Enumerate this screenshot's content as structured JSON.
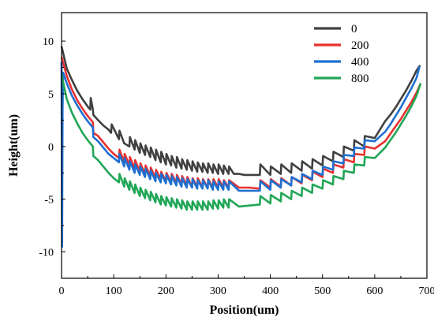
{
  "chart_data": {
    "type": "line",
    "title": "",
    "xlabel": "Position(um)",
    "ylabel": "Height(um)",
    "xlim": [
      0,
      700
    ],
    "ylim": [
      -12.5,
      12.7
    ],
    "x_ticks": [
      0,
      100,
      200,
      300,
      400,
      500,
      600,
      700
    ],
    "y_ticks": [
      -10,
      -5,
      0,
      5,
      10
    ],
    "grid": false,
    "legend_position": "top-right",
    "series": [
      {
        "name": "0",
        "color": "#404040",
        "x": [
          0,
          10,
          20,
          30,
          40,
          50,
          55,
          56,
          60,
          61,
          70,
          80,
          90,
          95,
          96,
          110,
          111,
          120,
          130,
          131,
          140,
          141,
          150,
          151,
          160,
          161,
          170,
          171,
          180,
          181,
          190,
          191,
          200,
          201,
          210,
          211,
          220,
          221,
          230,
          231,
          240,
          241,
          250,
          251,
          260,
          261,
          270,
          271,
          280,
          281,
          290,
          291,
          300,
          301,
          310,
          311,
          320,
          321,
          330,
          340,
          350,
          360,
          370,
          380,
          381,
          400,
          401,
          420,
          421,
          440,
          441,
          460,
          461,
          480,
          481,
          500,
          501,
          520,
          521,
          540,
          541,
          560,
          561,
          580,
          581,
          600,
          610,
          620,
          630,
          640,
          650,
          660,
          670,
          680,
          687
        ],
        "y": [
          9.5,
          7.4,
          6.3,
          5.3,
          4.5,
          3.8,
          3.5,
          4.6,
          3.5,
          3.0,
          2.5,
          2.0,
          1.6,
          1.3,
          2.1,
          0.7,
          1.5,
          0.3,
          0.0,
          0.9,
          -0.3,
          0.6,
          -0.6,
          0.3,
          -0.8,
          0.1,
          -1.0,
          -0.1,
          -1.3,
          -0.3,
          -1.5,
          -0.5,
          -1.7,
          -0.7,
          -1.8,
          -0.9,
          -2.0,
          -1.0,
          -2.1,
          -1.2,
          -2.2,
          -1.3,
          -2.3,
          -1.4,
          -2.4,
          -1.5,
          -2.4,
          -1.6,
          -2.5,
          -1.6,
          -2.5,
          -1.7,
          -2.6,
          -1.7,
          -2.6,
          -1.8,
          -2.6,
          -1.9,
          -2.6,
          -2.6,
          -2.7,
          -2.7,
          -2.7,
          -2.7,
          -1.7,
          -2.7,
          -1.9,
          -2.6,
          -1.7,
          -2.5,
          -1.6,
          -2.3,
          -1.4,
          -2.1,
          -1.2,
          -1.8,
          -0.9,
          -1.4,
          -0.5,
          -1.0,
          0.0,
          -0.4,
          0.6,
          0.0,
          1.0,
          0.8,
          1.6,
          2.4,
          3.0,
          3.7,
          4.5,
          5.3,
          6.2,
          7.2,
          7.7
        ]
      },
      {
        "name": "200",
        "color": "#e8312f",
        "x": [
          0,
          10,
          20,
          30,
          40,
          50,
          60,
          61,
          70,
          80,
          90,
          100,
          110,
          111,
          120,
          121,
          130,
          131,
          140,
          141,
          150,
          151,
          160,
          161,
          170,
          171,
          180,
          181,
          190,
          191,
          200,
          201,
          210,
          211,
          220,
          221,
          230,
          231,
          240,
          241,
          250,
          251,
          260,
          261,
          270,
          271,
          280,
          281,
          290,
          291,
          300,
          301,
          310,
          311,
          320,
          321,
          340,
          360,
          380,
          381,
          400,
          401,
          420,
          421,
          440,
          441,
          460,
          461,
          480,
          481,
          500,
          501,
          520,
          521,
          540,
          541,
          560,
          561,
          580,
          581,
          600,
          620,
          630,
          640,
          650,
          660,
          670,
          680,
          688
        ],
        "y": [
          8.5,
          6.7,
          5.4,
          4.4,
          3.6,
          2.9,
          2.3,
          1.3,
          1.0,
          0.4,
          -0.2,
          -0.7,
          -1.1,
          -0.3,
          -1.5,
          -0.7,
          -1.8,
          -1.0,
          -2.1,
          -1.3,
          -2.4,
          -1.6,
          -2.6,
          -1.8,
          -2.8,
          -2.0,
          -3.0,
          -2.2,
          -3.1,
          -2.4,
          -3.3,
          -2.5,
          -3.4,
          -2.6,
          -3.5,
          -2.7,
          -3.6,
          -2.8,
          -3.7,
          -2.9,
          -3.8,
          -3.0,
          -3.8,
          -3.0,
          -3.9,
          -3.1,
          -3.9,
          -3.1,
          -3.9,
          -3.1,
          -3.9,
          -3.1,
          -3.9,
          -3.2,
          -3.9,
          -3.2,
          -3.9,
          -3.9,
          -4.0,
          -3.2,
          -3.9,
          -3.1,
          -3.8,
          -3.0,
          -3.7,
          -2.9,
          -3.5,
          -2.7,
          -3.2,
          -2.4,
          -2.9,
          -2.1,
          -2.5,
          -1.7,
          -2.0,
          -1.2,
          -1.5,
          -0.7,
          -0.8,
          0.0,
          -0.2,
          0.5,
          1.2,
          1.9,
          2.6,
          3.4,
          4.2,
          5.1,
          6.0
        ]
      },
      {
        "name": "400",
        "color": "#1f6fd1",
        "x": [
          0,
          1,
          2,
          3,
          10,
          20,
          30,
          40,
          50,
          60,
          61,
          70,
          80,
          90,
          100,
          110,
          111,
          120,
          121,
          130,
          131,
          140,
          141,
          150,
          151,
          160,
          161,
          170,
          171,
          180,
          181,
          190,
          191,
          200,
          201,
          210,
          211,
          220,
          221,
          230,
          231,
          240,
          241,
          250,
          251,
          260,
          261,
          270,
          271,
          280,
          281,
          290,
          291,
          300,
          301,
          310,
          311,
          320,
          321,
          340,
          360,
          380,
          381,
          400,
          401,
          420,
          421,
          440,
          441,
          460,
          461,
          480,
          481,
          500,
          501,
          520,
          521,
          540,
          541,
          560,
          561,
          580,
          581,
          600,
          620,
          630,
          640,
          650,
          660,
          670,
          680,
          686
        ],
        "y": [
          8.0,
          -9.5,
          3.5,
          7.0,
          6.0,
          4.8,
          3.9,
          3.1,
          2.4,
          1.8,
          0.9,
          0.5,
          -0.1,
          -0.7,
          -1.1,
          -1.5,
          -0.7,
          -1.9,
          -1.1,
          -2.2,
          -1.4,
          -2.5,
          -1.7,
          -2.7,
          -1.9,
          -2.9,
          -2.1,
          -3.1,
          -2.3,
          -3.3,
          -2.5,
          -3.4,
          -2.6,
          -3.5,
          -2.7,
          -3.6,
          -2.8,
          -3.7,
          -2.9,
          -3.8,
          -3.0,
          -3.9,
          -3.1,
          -3.9,
          -3.1,
          -4.0,
          -3.2,
          -4.0,
          -3.2,
          -4.0,
          -3.2,
          -4.1,
          -3.3,
          -4.1,
          -3.3,
          -4.1,
          -3.3,
          -4.1,
          -3.3,
          -4.2,
          -4.2,
          -4.2,
          -3.3,
          -4.1,
          -3.2,
          -3.9,
          -3.1,
          -3.7,
          -2.9,
          -3.4,
          -2.6,
          -3.1,
          -2.3,
          -2.7,
          -1.9,
          -2.2,
          -1.4,
          -1.6,
          -0.8,
          -0.9,
          -0.1,
          -0.2,
          0.6,
          0.5,
          1.4,
          2.1,
          2.9,
          3.7,
          4.6,
          5.5,
          6.5,
          7.6
        ]
      },
      {
        "name": "800",
        "color": "#20a656",
        "x": [
          0,
          10,
          20,
          30,
          40,
          50,
          60,
          61,
          70,
          80,
          90,
          100,
          110,
          111,
          120,
          121,
          130,
          131,
          140,
          141,
          150,
          151,
          160,
          161,
          170,
          171,
          180,
          181,
          190,
          191,
          200,
          201,
          210,
          211,
          220,
          221,
          230,
          231,
          240,
          241,
          250,
          251,
          260,
          261,
          270,
          271,
          280,
          281,
          290,
          291,
          300,
          301,
          310,
          311,
          320,
          321,
          340,
          360,
          380,
          381,
          400,
          401,
          420,
          421,
          440,
          441,
          460,
          461,
          480,
          481,
          500,
          501,
          520,
          521,
          540,
          541,
          560,
          561,
          580,
          581,
          600,
          620,
          630,
          640,
          650,
          660,
          670,
          680,
          688
        ],
        "y": [
          6.8,
          4.5,
          3.2,
          2.2,
          1.3,
          0.6,
          0.0,
          -0.9,
          -1.3,
          -1.9,
          -2.5,
          -3.0,
          -3.4,
          -2.6,
          -3.8,
          -3.0,
          -4.1,
          -3.3,
          -4.4,
          -3.6,
          -4.7,
          -3.9,
          -4.9,
          -4.1,
          -5.1,
          -4.3,
          -5.3,
          -4.5,
          -5.5,
          -4.7,
          -5.6,
          -4.8,
          -5.7,
          -4.9,
          -5.8,
          -5.0,
          -5.9,
          -5.1,
          -6.0,
          -5.2,
          -6.0,
          -5.2,
          -6.0,
          -5.2,
          -6.0,
          -5.2,
          -6.0,
          -5.2,
          -5.9,
          -5.1,
          -5.9,
          -5.1,
          -5.8,
          -5.0,
          -5.8,
          -5.0,
          -5.7,
          -5.6,
          -5.5,
          -4.7,
          -5.4,
          -4.6,
          -5.2,
          -4.4,
          -5.0,
          -4.2,
          -4.7,
          -3.9,
          -4.4,
          -3.6,
          -4.0,
          -3.2,
          -3.6,
          -2.8,
          -3.1,
          -2.3,
          -2.5,
          -1.7,
          -1.8,
          -1.0,
          -1.1,
          -0.1,
          0.6,
          1.3,
          2.1,
          2.9,
          3.8,
          4.8,
          6.0
        ]
      }
    ]
  }
}
